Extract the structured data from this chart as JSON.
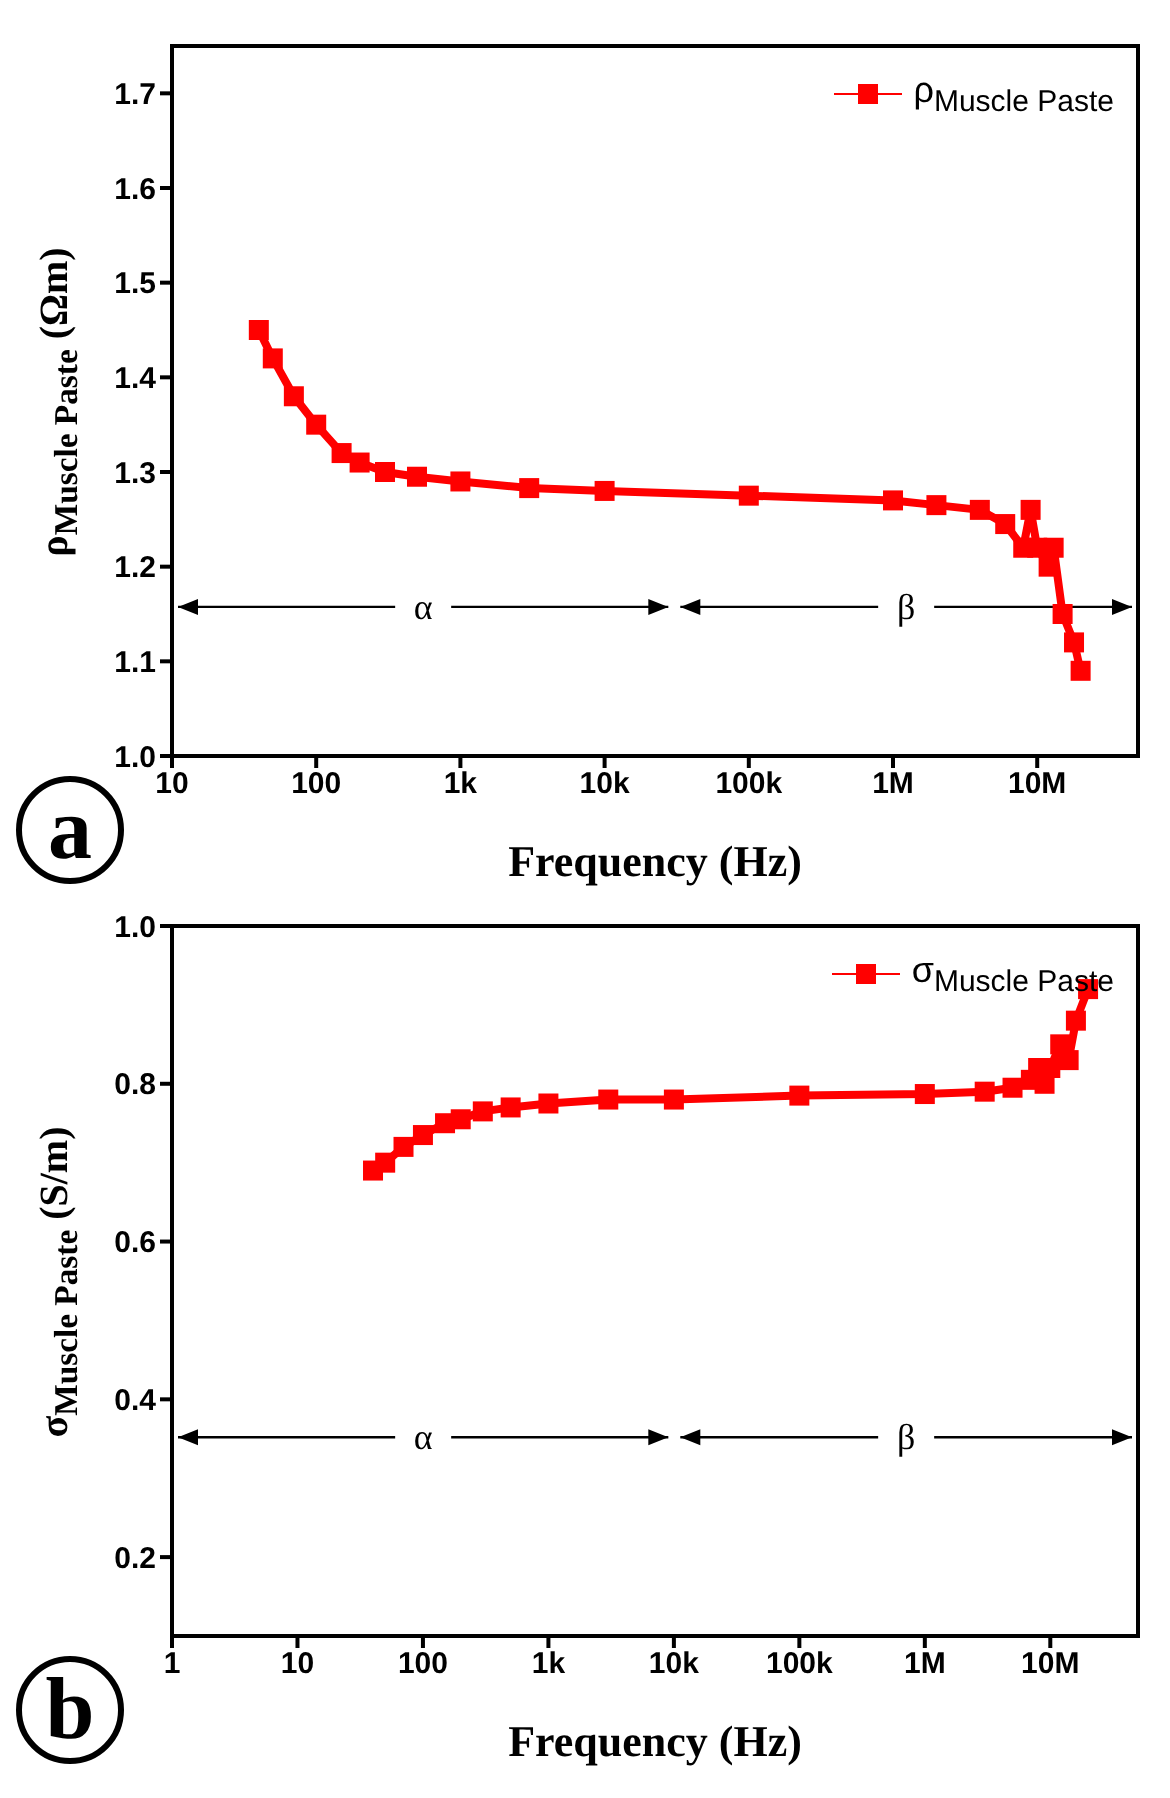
{
  "chart_data": [
    {
      "type": "line",
      "xlabel": "Frequency (Hz)",
      "ylabel": "ρ$_{Muscle Paste}$ (Ωm)",
      "log": "x",
      "legend": "top right",
      "marker": "square",
      "line_style": "solid",
      "grid": false,
      "xlim": [
        10,
        50000000
      ],
      "xticks": [
        10,
        100,
        {
          "value": 1000,
          "label": "1k"
        },
        {
          "value": 10000,
          "label": "10k"
        },
        {
          "value": 100000,
          "label": "100k"
        },
        {
          "value": 1000000,
          "label": "1M"
        },
        {
          "value": 10000000,
          "label": "10M"
        }
      ],
      "ylim": [
        1.0,
        1.75
      ],
      "yticks": [
        {
          "value": 1.0,
          "label": "1.0"
        },
        1.1,
        1.2,
        1.3,
        1.4,
        1.5,
        1.6,
        1.7
      ],
      "x": [
        40,
        50,
        70,
        100,
        150,
        200,
        300,
        500,
        1000,
        3000,
        10000,
        100000,
        1000000,
        2000000,
        4000000,
        6000000,
        8000000,
        9000000,
        10000000,
        12000000,
        13000000,
        15000000,
        18000000,
        20000000
      ],
      "series": [
        {
          "name": "ρ$_{Muscle Paste}$",
          "color": "#ff0000",
          "values": [
            1.45,
            1.42,
            1.38,
            1.35,
            1.32,
            1.31,
            1.3,
            1.295,
            1.29,
            1.283,
            1.28,
            1.275,
            1.27,
            1.265,
            1.26,
            1.245,
            1.22,
            1.26,
            1.22,
            1.2,
            1.22,
            1.15,
            1.12,
            1.09
          ]
        }
      ],
      "annotations": [
        "a",
        "α",
        "β"
      ]
    },
    {
      "type": "line",
      "xlabel": "Frequency (Hz)",
      "ylabel": "σ$_{Muscle Paste}$ (S/m)",
      "log": "x",
      "legend": "top right",
      "marker": "square",
      "line_style": "solid",
      "grid": false,
      "xlim": [
        1,
        50000000
      ],
      "xticks": [
        1,
        10,
        100,
        {
          "value": 1000,
          "label": "1k"
        },
        {
          "value": 10000,
          "label": "10k"
        },
        {
          "value": 100000,
          "label": "100k"
        },
        {
          "value": 1000000,
          "label": "1M"
        },
        {
          "value": 10000000,
          "label": "10M"
        }
      ],
      "ylim": [
        0.1,
        1.0
      ],
      "yticks": [
        0.2,
        0.4,
        0.6,
        0.8,
        {
          "value": 1.0,
          "label": "1.0"
        }
      ],
      "x": [
        40,
        50,
        70,
        100,
        150,
        200,
        300,
        500,
        1000,
        3000,
        10000,
        100000,
        1000000,
        3000000,
        5000000,
        7000000,
        8000000,
        9000000,
        10000000,
        12000000,
        14000000,
        16000000,
        20000000
      ],
      "series": [
        {
          "name": "σ$_{Muscle Paste}$",
          "color": "#ff0000",
          "values": [
            0.69,
            0.7,
            0.72,
            0.735,
            0.75,
            0.755,
            0.765,
            0.77,
            0.775,
            0.78,
            0.78,
            0.785,
            0.787,
            0.79,
            0.795,
            0.805,
            0.82,
            0.8,
            0.82,
            0.85,
            0.83,
            0.88,
            0.92
          ]
        }
      ],
      "annotations": [
        "b",
        "α",
        "β"
      ]
    }
  ]
}
